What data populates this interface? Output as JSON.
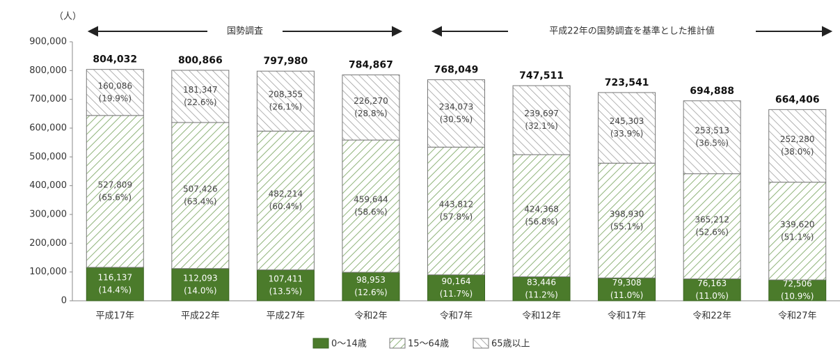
{
  "chart_data": {
    "type": "stacked_bar",
    "y_unit_label": "（人）",
    "annotations": [
      "国勢調査",
      "平成22年の国勢調査を基準とした推計値"
    ],
    "categories": [
      "平成17年",
      "平成22年",
      "平成27年",
      "令和2年",
      "令和7年",
      "令和12年",
      "令和17年",
      "令和22年",
      "令和27年"
    ],
    "series": [
      {
        "name": "0～14歳",
        "color": "#4b7b2b",
        "values": [
          116137,
          112093,
          107411,
          98953,
          90164,
          83446,
          79308,
          76163,
          72506
        ],
        "value_labels": [
          "116,137",
          "112,093",
          "107,411",
          "98,953",
          "90,164",
          "83,446",
          "79,308",
          "76,163",
          "72,506"
        ],
        "share_labels": [
          "(14.4%)",
          "(14.0%)",
          "(13.5%)",
          "(12.6%)",
          "(11.7%)",
          "(11.2%)",
          "(11.0%)",
          "(11.0%)",
          "(10.9%)"
        ]
      },
      {
        "name": "15～64歳",
        "color": "#8fb37a",
        "values": [
          527809,
          507426,
          482214,
          459644,
          443812,
          424368,
          398930,
          365212,
          339620
        ],
        "value_labels": [
          "527,809",
          "507,426",
          "482,214",
          "459,644",
          "443,812",
          "424,368",
          "398,930",
          "365,212",
          "339,620"
        ],
        "share_labels": [
          "(65.6%)",
          "(63.4%)",
          "(60.4%)",
          "(58.6%)",
          "(57.8%)",
          "(56.8%)",
          "(55.1%)",
          "(52.6%)",
          "(51.1%)"
        ]
      },
      {
        "name": "65歳以上",
        "color": "#9a9a9a",
        "values": [
          160086,
          181347,
          208355,
          226270,
          234073,
          239697,
          245303,
          253513,
          252280
        ],
        "value_labels": [
          "160,086",
          "181,347",
          "208,355",
          "226,270",
          "234,073",
          "239,697",
          "245,303",
          "253,513",
          "252,280"
        ],
        "share_labels": [
          "(19.9%)",
          "(22.6%)",
          "(26.1%)",
          "(28.8%)",
          "(30.5%)",
          "(32.1%)",
          "(33.9%)",
          "(36.5%)",
          "(38.0%)"
        ]
      }
    ],
    "totals": [
      804032,
      800866,
      797980,
      784867,
      768049,
      747511,
      723541,
      694888,
      664406
    ],
    "total_labels": [
      "804,032",
      "800,866",
      "797,980",
      "784,867",
      "768,049",
      "747,511",
      "723,541",
      "694,888",
      "664,406"
    ],
    "ylim": [
      0,
      900000
    ],
    "yticks": [
      0,
      {
        "value": 100000,
        "label": "100,000"
      },
      {
        "value": 200000,
        "label": "200,000"
      },
      {
        "value": 300000,
        "label": "300,000"
      },
      {
        "value": 400000,
        "label": "400,000"
      },
      {
        "value": 500000,
        "label": "500,000"
      },
      {
        "value": 600000,
        "label": "600,000"
      },
      {
        "value": 700000,
        "label": "700,000"
      },
      {
        "value": 800000,
        "label": "800,000"
      },
      {
        "value": 900000,
        "label": "900,000"
      }
    ],
    "grid": false,
    "legend": "bottom"
  }
}
